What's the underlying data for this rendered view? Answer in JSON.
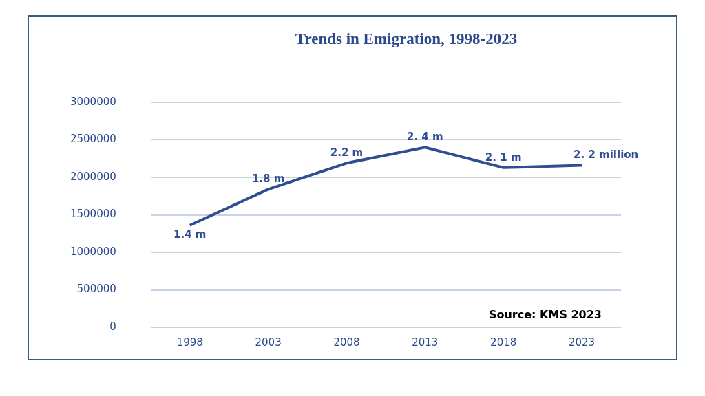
{
  "chart_data": {
    "type": "line",
    "title": "Trends in Emigration, 1998-2023",
    "categories": [
      "1998",
      "2003",
      "2008",
      "2013",
      "2018",
      "2023"
    ],
    "series": [
      {
        "color": "#2f4d8f",
        "values": [
          1360000,
          1840000,
          2190000,
          2400000,
          2130000,
          2160000
        ]
      }
    ],
    "ylim": [
      0,
      3000000
    ],
    "yticks": [
      0,
      500000,
      1000000,
      1500000,
      2000000,
      2500000,
      3000000
    ],
    "grid": "y",
    "legend": false,
    "marker": "none",
    "line_style": "solid",
    "annotations": [
      {
        "text": "1.4 m",
        "x": "1998",
        "y": 1360000
      },
      {
        "text": "1.8 m",
        "x": "2003",
        "y": 1840000
      },
      {
        "text": "2.2 m",
        "x": "2008",
        "y": 2190000
      },
      {
        "text": "2. 4 m",
        "x": "2013",
        "y": 2400000
      },
      {
        "text": "2. 1 m",
        "x": "2018",
        "y": 2130000
      },
      {
        "text": "2. 2 million",
        "x": "2023",
        "y": 2160000
      },
      "Source: KMS 2023"
    ]
  }
}
